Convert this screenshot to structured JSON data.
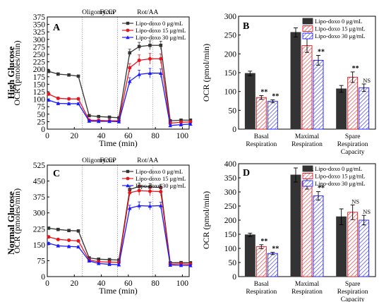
{
  "row_labels": [
    "High Glucose",
    "Normal Glucose"
  ],
  "colors": {
    "0": "#333333",
    "15": "#e8141c",
    "30": "#1a1aff"
  },
  "chart_data": [
    {
      "type": "line",
      "panel": "A",
      "phases": [
        "Oligomycin",
        "FCCP",
        "Rot/AA"
      ],
      "phase_boundaries": [
        26,
        52,
        78
      ],
      "xlabel": "Time (min)",
      "ylabel": "OCR (pmoles/min)",
      "xlim": [
        0,
        105
      ],
      "ylim": [
        0,
        375
      ],
      "xticks": [
        0,
        20,
        40,
        60,
        80,
        100
      ],
      "yticks": [
        0,
        25,
        50,
        75,
        100,
        125,
        150,
        175,
        200,
        225,
        250,
        275,
        300,
        325,
        350,
        375
      ],
      "x": [
        1,
        8,
        16,
        23,
        31,
        38,
        46,
        53,
        61,
        68,
        76,
        84,
        91,
        99,
        106
      ],
      "series": [
        {
          "name": "Lipo-doxo  0 μg/mL",
          "color": "#333333",
          "marker": "square",
          "values": [
            193,
            184,
            181,
            177,
            45,
            42,
            40,
            38,
            255,
            276,
            280,
            280,
            28,
            30,
            30
          ],
          "err": [
            5,
            4,
            4,
            3,
            3,
            3,
            3,
            3,
            12,
            14,
            15,
            14,
            4,
            4,
            4
          ]
        },
        {
          "name": "Lipo-doxo 15 μg/mL",
          "color": "#e8141c",
          "marker": "circle",
          "values": [
            117,
            103,
            101,
            101,
            30,
            29,
            28,
            28,
            205,
            230,
            235,
            235,
            20,
            23,
            24
          ],
          "err": [
            5,
            4,
            4,
            4,
            3,
            3,
            3,
            3,
            14,
            18,
            18,
            16,
            3,
            3,
            3
          ]
        },
        {
          "name": "Lipo-doxo 30 μg/mL",
          "color": "#1a1aff",
          "marker": "triangle",
          "values": [
            97,
            86,
            85,
            85,
            27,
            26,
            26,
            25,
            160,
            183,
            187,
            187,
            12,
            15,
            17
          ],
          "err": [
            4,
            3,
            3,
            3,
            3,
            3,
            3,
            3,
            12,
            14,
            16,
            14,
            3,
            3,
            3
          ]
        }
      ]
    },
    {
      "type": "bar",
      "panel": "B",
      "ylabel": "OCR (pmol/min)",
      "ylim": [
        0,
        300
      ],
      "yticks": [
        0,
        50,
        100,
        150,
        200,
        250,
        300
      ],
      "categories": [
        "Basal\nRespiration",
        "Maximal\nRespiration",
        "Spare\nRespiration\nCapacity"
      ],
      "series": [
        {
          "name": "Lipo-doxo  0 μg/mL",
          "color": "#333333",
          "values": [
            148,
            257,
            107
          ],
          "err": [
            6,
            12,
            9
          ],
          "sig": [
            "",
            "",
            ""
          ]
        },
        {
          "name": "Lipo-doxo 15 μg/mL",
          "color": "#e8141c",
          "values": [
            84,
            222,
            138
          ],
          "err": [
            5,
            18,
            14
          ],
          "sig": [
            "**",
            "**",
            "**"
          ]
        },
        {
          "name": "Lipo-doxo 30 μg/mL",
          "color": "#1a1aff",
          "values": [
            74,
            183,
            110
          ],
          "err": [
            4,
            13,
            10
          ],
          "sig": [
            "**",
            "**",
            "NS"
          ]
        }
      ]
    },
    {
      "type": "line",
      "panel": "C",
      "phases": [
        "Oligomycin",
        "FCCP",
        "Rot/AA"
      ],
      "phase_boundaries": [
        26,
        52,
        78
      ],
      "xlabel": "Time (min)",
      "ylabel": "OCR (pmoles/min)",
      "xlim": [
        0,
        105
      ],
      "ylim": [
        0,
        525
      ],
      "xticks": [
        0,
        20,
        40,
        60,
        80,
        100
      ],
      "yticks": [
        0,
        75,
        150,
        225,
        300,
        375,
        450,
        525
      ],
      "x": [
        1,
        8,
        16,
        23,
        31,
        38,
        46,
        53,
        61,
        68,
        76,
        84,
        91,
        99,
        106
      ],
      "series": [
        {
          "name": "Lipo-doxo  0 μg/mL",
          "color": "#333333",
          "marker": "square",
          "values": [
            228,
            222,
            217,
            215,
            88,
            82,
            80,
            78,
            410,
            425,
            422,
            420,
            65,
            66,
            65
          ],
          "err": [
            5,
            5,
            5,
            5,
            4,
            4,
            4,
            4,
            14,
            16,
            16,
            15,
            4,
            4,
            4
          ]
        },
        {
          "name": "Lipo-doxo 15 μg/mL",
          "color": "#e8141c",
          "marker": "circle",
          "values": [
            187,
            175,
            171,
            168,
            78,
            70,
            68,
            67,
            395,
            405,
            402,
            400,
            58,
            60,
            58
          ],
          "err": [
            5,
            5,
            5,
            5,
            4,
            4,
            4,
            4,
            15,
            22,
            22,
            20,
            4,
            4,
            4
          ]
        },
        {
          "name": "Lipo-doxo 30 μg/mL",
          "color": "#1a1aff",
          "marker": "triangle",
          "values": [
            157,
            145,
            142,
            140,
            74,
            62,
            58,
            56,
            322,
            334,
            332,
            334,
            54,
            53,
            52
          ],
          "err": [
            4,
            4,
            4,
            4,
            4,
            4,
            4,
            4,
            14,
            18,
            18,
            16,
            4,
            4,
            4
          ]
        }
      ]
    },
    {
      "type": "bar",
      "panel": "D",
      "ylabel": "OCR (pmol/min)",
      "ylim": [
        0,
        400
      ],
      "yticks": [
        0,
        50,
        100,
        150,
        200,
        250,
        300,
        350,
        400
      ],
      "categories": [
        "Basal\nRespiration",
        "Maximal\nRespiration",
        "Spare\nRespiration\nCapacity"
      ],
      "series": [
        {
          "name": "Lipo-doxo  0 μg/mL",
          "color": "#333333",
          "values": [
            148,
            360,
            212
          ],
          "err": [
            6,
            25,
            28
          ],
          "sig": [
            "",
            "",
            ""
          ]
        },
        {
          "name": "Lipo-doxo 15 μg/mL",
          "color": "#e8141c",
          "values": [
            106,
            338,
            228
          ],
          "err": [
            7,
            28,
            26
          ],
          "sig": [
            "**",
            "NS",
            "NS"
          ]
        },
        {
          "name": "Lipo-doxo 30 μg/mL",
          "color": "#1a1aff",
          "values": [
            82,
            286,
            200
          ],
          "err": [
            4,
            15,
            17
          ],
          "sig": [
            "**",
            "**",
            "NS"
          ]
        }
      ]
    }
  ]
}
